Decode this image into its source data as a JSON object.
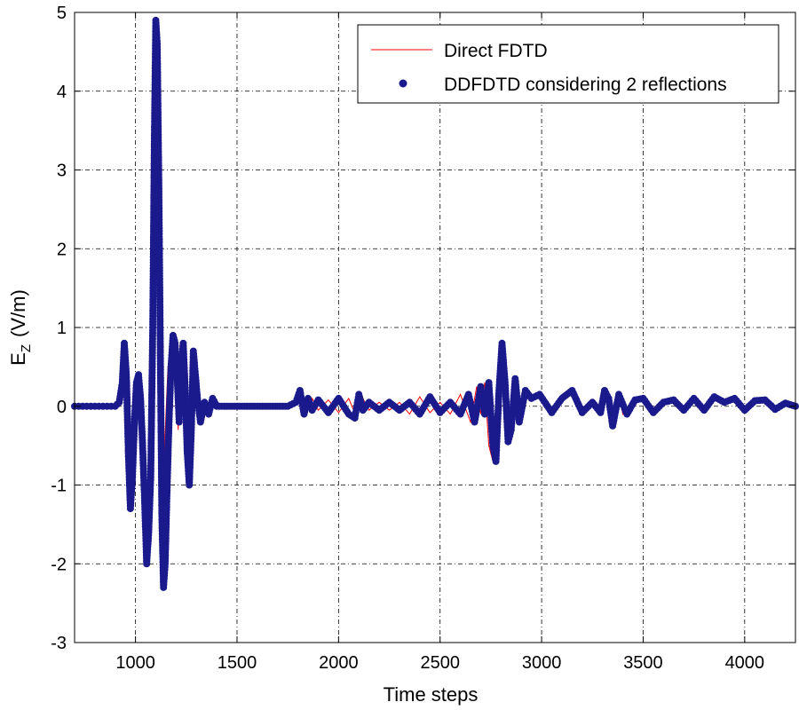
{
  "chart_data": {
    "type": "line",
    "title": "",
    "xlabel": "Time steps",
    "ylabel": {
      "base": "E",
      "sub": "Z",
      "unit": "(V/m)"
    },
    "xlim": [
      700,
      4250
    ],
    "ylim": [
      -3,
      5
    ],
    "xticks": [
      "1000",
      "1500",
      "2000",
      "2500",
      "3000",
      "3500",
      "4000"
    ],
    "yticks": [
      "-3",
      "-2",
      "-1",
      "0",
      "1",
      "2",
      "3",
      "4",
      "5"
    ],
    "grid": true,
    "grid_style": "dash-dot",
    "legend_position": "top-right",
    "series": [
      {
        "name": "Direct FDTD",
        "style": "line",
        "color": "#ff0000",
        "x": [
          700,
          900,
          920,
          940,
          955,
          965,
          975,
          985,
          1000,
          1010,
          1020,
          1030,
          1045,
          1060,
          1075,
          1085,
          1095,
          1103,
          1110,
          1118,
          1125,
          1135,
          1145,
          1160,
          1180,
          1195,
          1210,
          1220,
          1235,
          1250,
          1265,
          1280,
          1295,
          1310,
          1330,
          1350,
          1370,
          1400,
          1450,
          1500,
          1600,
          1700,
          1780,
          1820,
          1840,
          1870,
          1900,
          1950,
          2000,
          2050,
          2090,
          2110,
          2150,
          2200,
          2250,
          2300,
          2350,
          2400,
          2450,
          2500,
          2550,
          2600,
          2650,
          2680,
          2700,
          2720,
          2740,
          2760,
          2780,
          2800,
          2815,
          2830,
          2850,
          2870,
          2900,
          2930,
          2960,
          3000,
          3050,
          3100,
          3150,
          3200,
          3250,
          3290,
          3310,
          3330,
          3350,
          3380,
          3400,
          3450,
          3500,
          3550,
          3600,
          3650,
          3700,
          3750,
          3800,
          3850,
          3900,
          3950,
          4000,
          4050,
          4100,
          4150,
          4200,
          4250
        ],
        "y": [
          0,
          0,
          0.05,
          0.3,
          0.8,
          0.2,
          -0.8,
          -1.3,
          -0.6,
          0.3,
          0.4,
          -0.2,
          -1.2,
          -2.0,
          -1.2,
          1.5,
          4.9,
          4.9,
          2.5,
          -0.5,
          -2.3,
          -1.6,
          -0.4,
          0.5,
          0.9,
          0.6,
          -0.3,
          0.8,
          0.3,
          -0.8,
          -1.0,
          0.7,
          0.2,
          -0.2,
          0.05,
          -0.1,
          0.1,
          0,
          0,
          0,
          0,
          0,
          0.05,
          0.2,
          -0.1,
          0.1,
          -0.05,
          0.08,
          -0.08,
          0.1,
          -0.15,
          0.15,
          -0.05,
          0.05,
          -0.05,
          0.05,
          -0.1,
          0.12,
          -0.08,
          0.05,
          -0.1,
          0.15,
          -0.2,
          0.25,
          -0.1,
          0.3,
          -0.5,
          -0.7,
          0.2,
          0.8,
          0.3,
          -0.45,
          -0.3,
          0.35,
          -0.2,
          0.2,
          0.1,
          0.15,
          -0.08,
          0.1,
          0.2,
          -0.08,
          0.05,
          -0.08,
          0.2,
          0.1,
          -0.25,
          0.15,
          -0.1,
          0.08,
          0.1,
          -0.08,
          0.05,
          0.08,
          -0.05,
          0.1,
          -0.05,
          0.12,
          0.05,
          0.1,
          -0.05,
          0.07,
          0.08,
          -0.04,
          0.04,
          0
        ]
      },
      {
        "name": "DDFDTD considering 2 reflections",
        "style": "markers",
        "color": "#1a1a8c",
        "x": [
          700,
          720,
          740,
          760,
          780,
          800,
          820,
          840,
          860,
          880,
          900,
          920,
          935,
          945,
          955,
          965,
          975,
          985,
          995,
          1005,
          1015,
          1025,
          1035,
          1045,
          1055,
          1065,
          1075,
          1085,
          1093,
          1100,
          1107,
          1115,
          1123,
          1130,
          1138,
          1146,
          1155,
          1165,
          1175,
          1185,
          1195,
          1205,
          1215,
          1225,
          1235,
          1245,
          1255,
          1265,
          1275,
          1285,
          1295,
          1305,
          1320,
          1340,
          1360,
          1380,
          1400,
          1450,
          1500,
          1550,
          1600,
          1650,
          1700,
          1750,
          1790,
          1810,
          1830,
          1850,
          1870,
          1900,
          1950,
          2000,
          2050,
          2080,
          2100,
          2120,
          2150,
          2200,
          2250,
          2300,
          2350,
          2400,
          2450,
          2500,
          2550,
          2600,
          2640,
          2670,
          2700,
          2720,
          2740,
          2760,
          2775,
          2790,
          2805,
          2820,
          2835,
          2850,
          2870,
          2890,
          2920,
          2950,
          2990,
          3050,
          3100,
          3150,
          3200,
          3250,
          3290,
          3310,
          3330,
          3350,
          3380,
          3420,
          3460,
          3500,
          3550,
          3600,
          3650,
          3700,
          3750,
          3800,
          3850,
          3900,
          3950,
          4000,
          4050,
          4100,
          4150,
          4200,
          4250
        ],
        "y": [
          0,
          0,
          0,
          0,
          0,
          0,
          0,
          0,
          0,
          0,
          0,
          0.05,
          0.3,
          0.8,
          0.4,
          -0.6,
          -1.3,
          -0.9,
          -0.2,
          0.3,
          0.4,
          0.1,
          -0.5,
          -1.2,
          -2.0,
          -1.6,
          -0.9,
          1.0,
          3.4,
          4.9,
          4.6,
          2.8,
          0.5,
          -1.4,
          -2.3,
          -2.0,
          -1.1,
          -0.2,
          0.5,
          0.9,
          0.8,
          0.4,
          -0.2,
          0.5,
          0.8,
          0.2,
          -0.6,
          -1.0,
          -0.3,
          0.7,
          0.4,
          0.1,
          -0.2,
          0.05,
          -0.1,
          0.1,
          0,
          0,
          0,
          0,
          0,
          0,
          0,
          0,
          0.05,
          0.2,
          -0.1,
          0.1,
          -0.05,
          0.08,
          -0.08,
          0.1,
          -0.1,
          -0.15,
          0.15,
          -0.05,
          0.05,
          -0.05,
          0.05,
          -0.05,
          0.05,
          -0.1,
          0.12,
          -0.08,
          0.05,
          -0.1,
          0.15,
          -0.2,
          0.25,
          -0.1,
          0.3,
          -0.5,
          -0.7,
          0.2,
          0.8,
          0.3,
          -0.45,
          -0.3,
          0.35,
          -0.2,
          0.2,
          0.1,
          0.15,
          -0.08,
          0.1,
          0.2,
          -0.08,
          0.05,
          -0.08,
          0.2,
          0.1,
          -0.25,
          0.15,
          -0.1,
          0.08,
          0.1,
          -0.08,
          0.05,
          0.08,
          -0.05,
          0.1,
          -0.05,
          0.12,
          0.05,
          0.1,
          -0.05,
          0.07,
          0.08,
          -0.04,
          0.04,
          0
        ]
      }
    ]
  }
}
